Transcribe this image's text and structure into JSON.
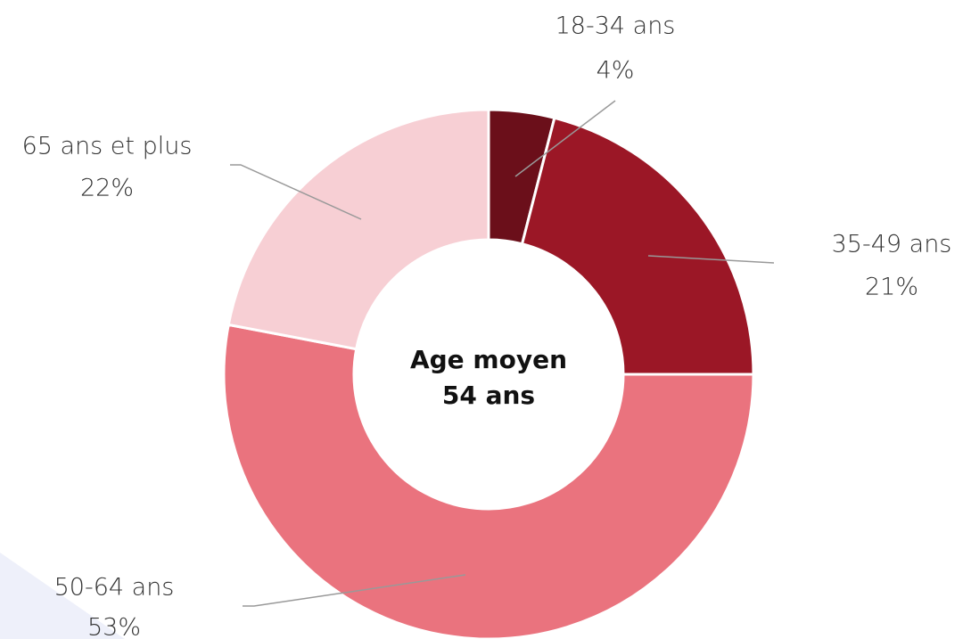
{
  "chart_data": {
    "type": "donut",
    "categories": [
      "18-34 ans",
      "35-49 ans",
      "50-64 ans",
      "65 ans et plus"
    ],
    "values": [
      4,
      21,
      53,
      22
    ],
    "value_labels": [
      "4%",
      "21%",
      "53%",
      "22%"
    ],
    "colors": [
      "#6b0f1a",
      "#9b1726",
      "#ea737e",
      "#f7cfd4"
    ],
    "center_text": [
      "Age moyen",
      "54 ans"
    ]
  }
}
